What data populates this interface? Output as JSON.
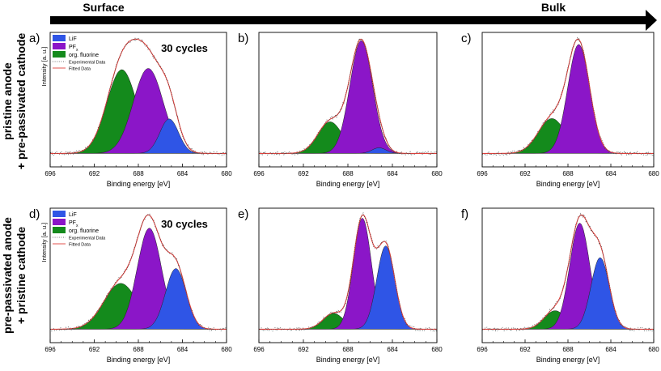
{
  "header": {
    "surface_label": "Surface",
    "bulk_label": "Bulk"
  },
  "rows": [
    {
      "label_line1": "pristine anode",
      "label_line2": "+ pre-passivated cathode"
    },
    {
      "label_line1": "pre-passivated anode",
      "label_line2": "+ pristine cathode"
    }
  ],
  "legend": {
    "items": [
      {
        "label": "LiF",
        "color": "#2f55e6"
      },
      {
        "label": "PF",
        "subscript": "x",
        "color": "#8b16c8"
      },
      {
        "label": "org. fluorine",
        "color": "#148a1c"
      }
    ],
    "experimental": "Experimental Data",
    "fitted": "Fitted Data"
  },
  "colors": {
    "lif": "#2f55e6",
    "pfx": "#8b16c8",
    "org": "#148a1c",
    "fit": "#e0403c",
    "exp": "#444444"
  },
  "chart_data": [
    {
      "id": "a",
      "panel_label": "a)",
      "annotation": "30 cycles",
      "type": "area",
      "xlabel": "Binding energy [eV]",
      "ylabel": "Intensity [a. u.]",
      "xlim": [
        696,
        680
      ],
      "xticks": [
        696,
        692,
        688,
        684,
        680
      ],
      "series": [
        {
          "name": "org. fluorine",
          "peak_ev": 689.5,
          "fwhm_ev": 3.2,
          "height": 0.68
        },
        {
          "name": "PFx",
          "peak_ev": 687.1,
          "fwhm_ev": 3.2,
          "height": 0.69
        },
        {
          "name": "LiF",
          "peak_ev": 685.2,
          "fwhm_ev": 2.0,
          "height": 0.28
        }
      ]
    },
    {
      "id": "b",
      "panel_label": "b)",
      "type": "area",
      "xlabel": "Binding energy [eV]",
      "xlim": [
        696,
        680
      ],
      "xticks": [
        696,
        692,
        688,
        684,
        680
      ],
      "series": [
        {
          "name": "org. fluorine",
          "peak_ev": 689.6,
          "fwhm_ev": 2.6,
          "height": 0.28
        },
        {
          "name": "PFx",
          "peak_ev": 686.8,
          "fwhm_ev": 2.4,
          "height": 1.0
        },
        {
          "name": "LiF",
          "peak_ev": 685.2,
          "fwhm_ev": 1.5,
          "height": 0.05
        }
      ]
    },
    {
      "id": "c",
      "panel_label": "c)",
      "type": "area",
      "xlabel": "Binding energy [eV]",
      "xlim": [
        696,
        680
      ],
      "xticks": [
        696,
        692,
        688,
        684,
        680
      ],
      "series": [
        {
          "name": "org. fluorine",
          "peak_ev": 689.5,
          "fwhm_ev": 3.0,
          "height": 0.32
        },
        {
          "name": "PFx",
          "peak_ev": 687.0,
          "fwhm_ev": 2.4,
          "height": 1.0
        }
      ]
    },
    {
      "id": "d",
      "panel_label": "d)",
      "annotation": "30 cycles",
      "type": "area",
      "xlabel": "Binding energy [eV]",
      "ylabel": "Intensity [a. u.]",
      "xlim": [
        696,
        680
      ],
      "xticks": [
        696,
        692,
        688,
        684,
        680
      ],
      "series": [
        {
          "name": "org. fluorine",
          "peak_ev": 689.6,
          "fwhm_ev": 3.6,
          "height": 0.34
        },
        {
          "name": "PFx",
          "peak_ev": 687.0,
          "fwhm_ev": 2.6,
          "height": 0.75
        },
        {
          "name": "LiF",
          "peak_ev": 684.6,
          "fwhm_ev": 2.2,
          "height": 0.45
        }
      ]
    },
    {
      "id": "e",
      "panel_label": "e)",
      "type": "area",
      "xlabel": "Binding energy [eV]",
      "xlim": [
        696,
        680
      ],
      "xticks": [
        696,
        692,
        688,
        684,
        680
      ],
      "series": [
        {
          "name": "org. fluorine",
          "peak_ev": 689.3,
          "fwhm_ev": 2.2,
          "height": 0.12
        },
        {
          "name": "PFx",
          "peak_ev": 686.7,
          "fwhm_ev": 1.9,
          "height": 0.84
        },
        {
          "name": "LiF",
          "peak_ev": 684.6,
          "fwhm_ev": 1.9,
          "height": 0.63
        }
      ]
    },
    {
      "id": "f",
      "panel_label": "f)",
      "type": "area",
      "xlabel": "Binding energy [eV]",
      "xlim": [
        696,
        680
      ],
      "xticks": [
        696,
        692,
        688,
        684,
        680
      ],
      "series": [
        {
          "name": "org. fluorine",
          "peak_ev": 689.2,
          "fwhm_ev": 2.4,
          "height": 0.15
        },
        {
          "name": "PFx",
          "peak_ev": 686.9,
          "fwhm_ev": 2.2,
          "height": 0.86
        },
        {
          "name": "LiF",
          "peak_ev": 685.0,
          "fwhm_ev": 2.0,
          "height": 0.58
        }
      ]
    }
  ]
}
